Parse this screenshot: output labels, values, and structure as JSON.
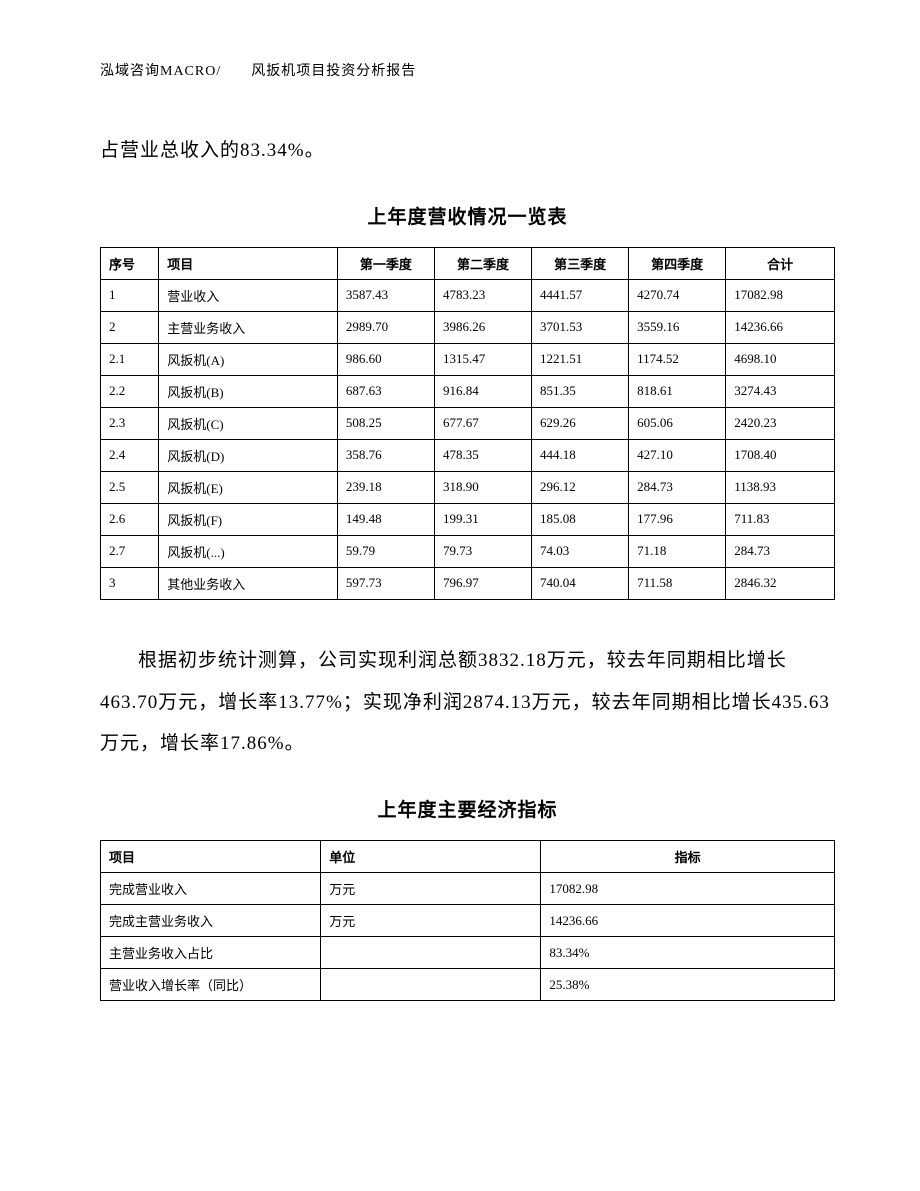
{
  "header": "泓域咨询MACRO/　　风扳机项目投资分析报告",
  "intro_line": "占营业总收入的83.34%。",
  "table1": {
    "title": "上年度营收情况一览表",
    "columns": [
      "序号",
      "项目",
      "第一季度",
      "第二季度",
      "第三季度",
      "第四季度",
      "合计"
    ],
    "rows": [
      [
        "1",
        "营业收入",
        "3587.43",
        "4783.23",
        "4441.57",
        "4270.74",
        "17082.98"
      ],
      [
        "2",
        "主营业务收入",
        "2989.70",
        "3986.26",
        "3701.53",
        "3559.16",
        "14236.66"
      ],
      [
        "2.1",
        "风扳机(A)",
        "986.60",
        "1315.47",
        "1221.51",
        "1174.52",
        "4698.10"
      ],
      [
        "2.2",
        "风扳机(B)",
        "687.63",
        "916.84",
        "851.35",
        "818.61",
        "3274.43"
      ],
      [
        "2.3",
        "风扳机(C)",
        "508.25",
        "677.67",
        "629.26",
        "605.06",
        "2420.23"
      ],
      [
        "2.4",
        "风扳机(D)",
        "358.76",
        "478.35",
        "444.18",
        "427.10",
        "1708.40"
      ],
      [
        "2.5",
        "风扳机(E)",
        "239.18",
        "318.90",
        "296.12",
        "284.73",
        "1138.93"
      ],
      [
        "2.6",
        "风扳机(F)",
        "149.48",
        "199.31",
        "185.08",
        "177.96",
        "711.83"
      ],
      [
        "2.7",
        "风扳机(...)",
        "59.79",
        "79.73",
        "74.03",
        "71.18",
        "284.73"
      ],
      [
        "3",
        "其他业务收入",
        "597.73",
        "796.97",
        "740.04",
        "711.58",
        "2846.32"
      ]
    ]
  },
  "analysis_text": "根据初步统计测算，公司实现利润总额3832.18万元，较去年同期相比增长463.70万元，增长率13.77%；实现净利润2874.13万元，较去年同期相比增长435.63万元，增长率17.86%。",
  "table2": {
    "title": "上年度主要经济指标",
    "columns": [
      "项目",
      "单位",
      "指标"
    ],
    "rows": [
      [
        "完成营业收入",
        "万元",
        "17082.98"
      ],
      [
        "完成主营业务收入",
        "万元",
        "14236.66"
      ],
      [
        "主营业务收入占比",
        "",
        "83.34%"
      ],
      [
        "营业收入增长率（同比）",
        "",
        "25.38%"
      ]
    ]
  }
}
